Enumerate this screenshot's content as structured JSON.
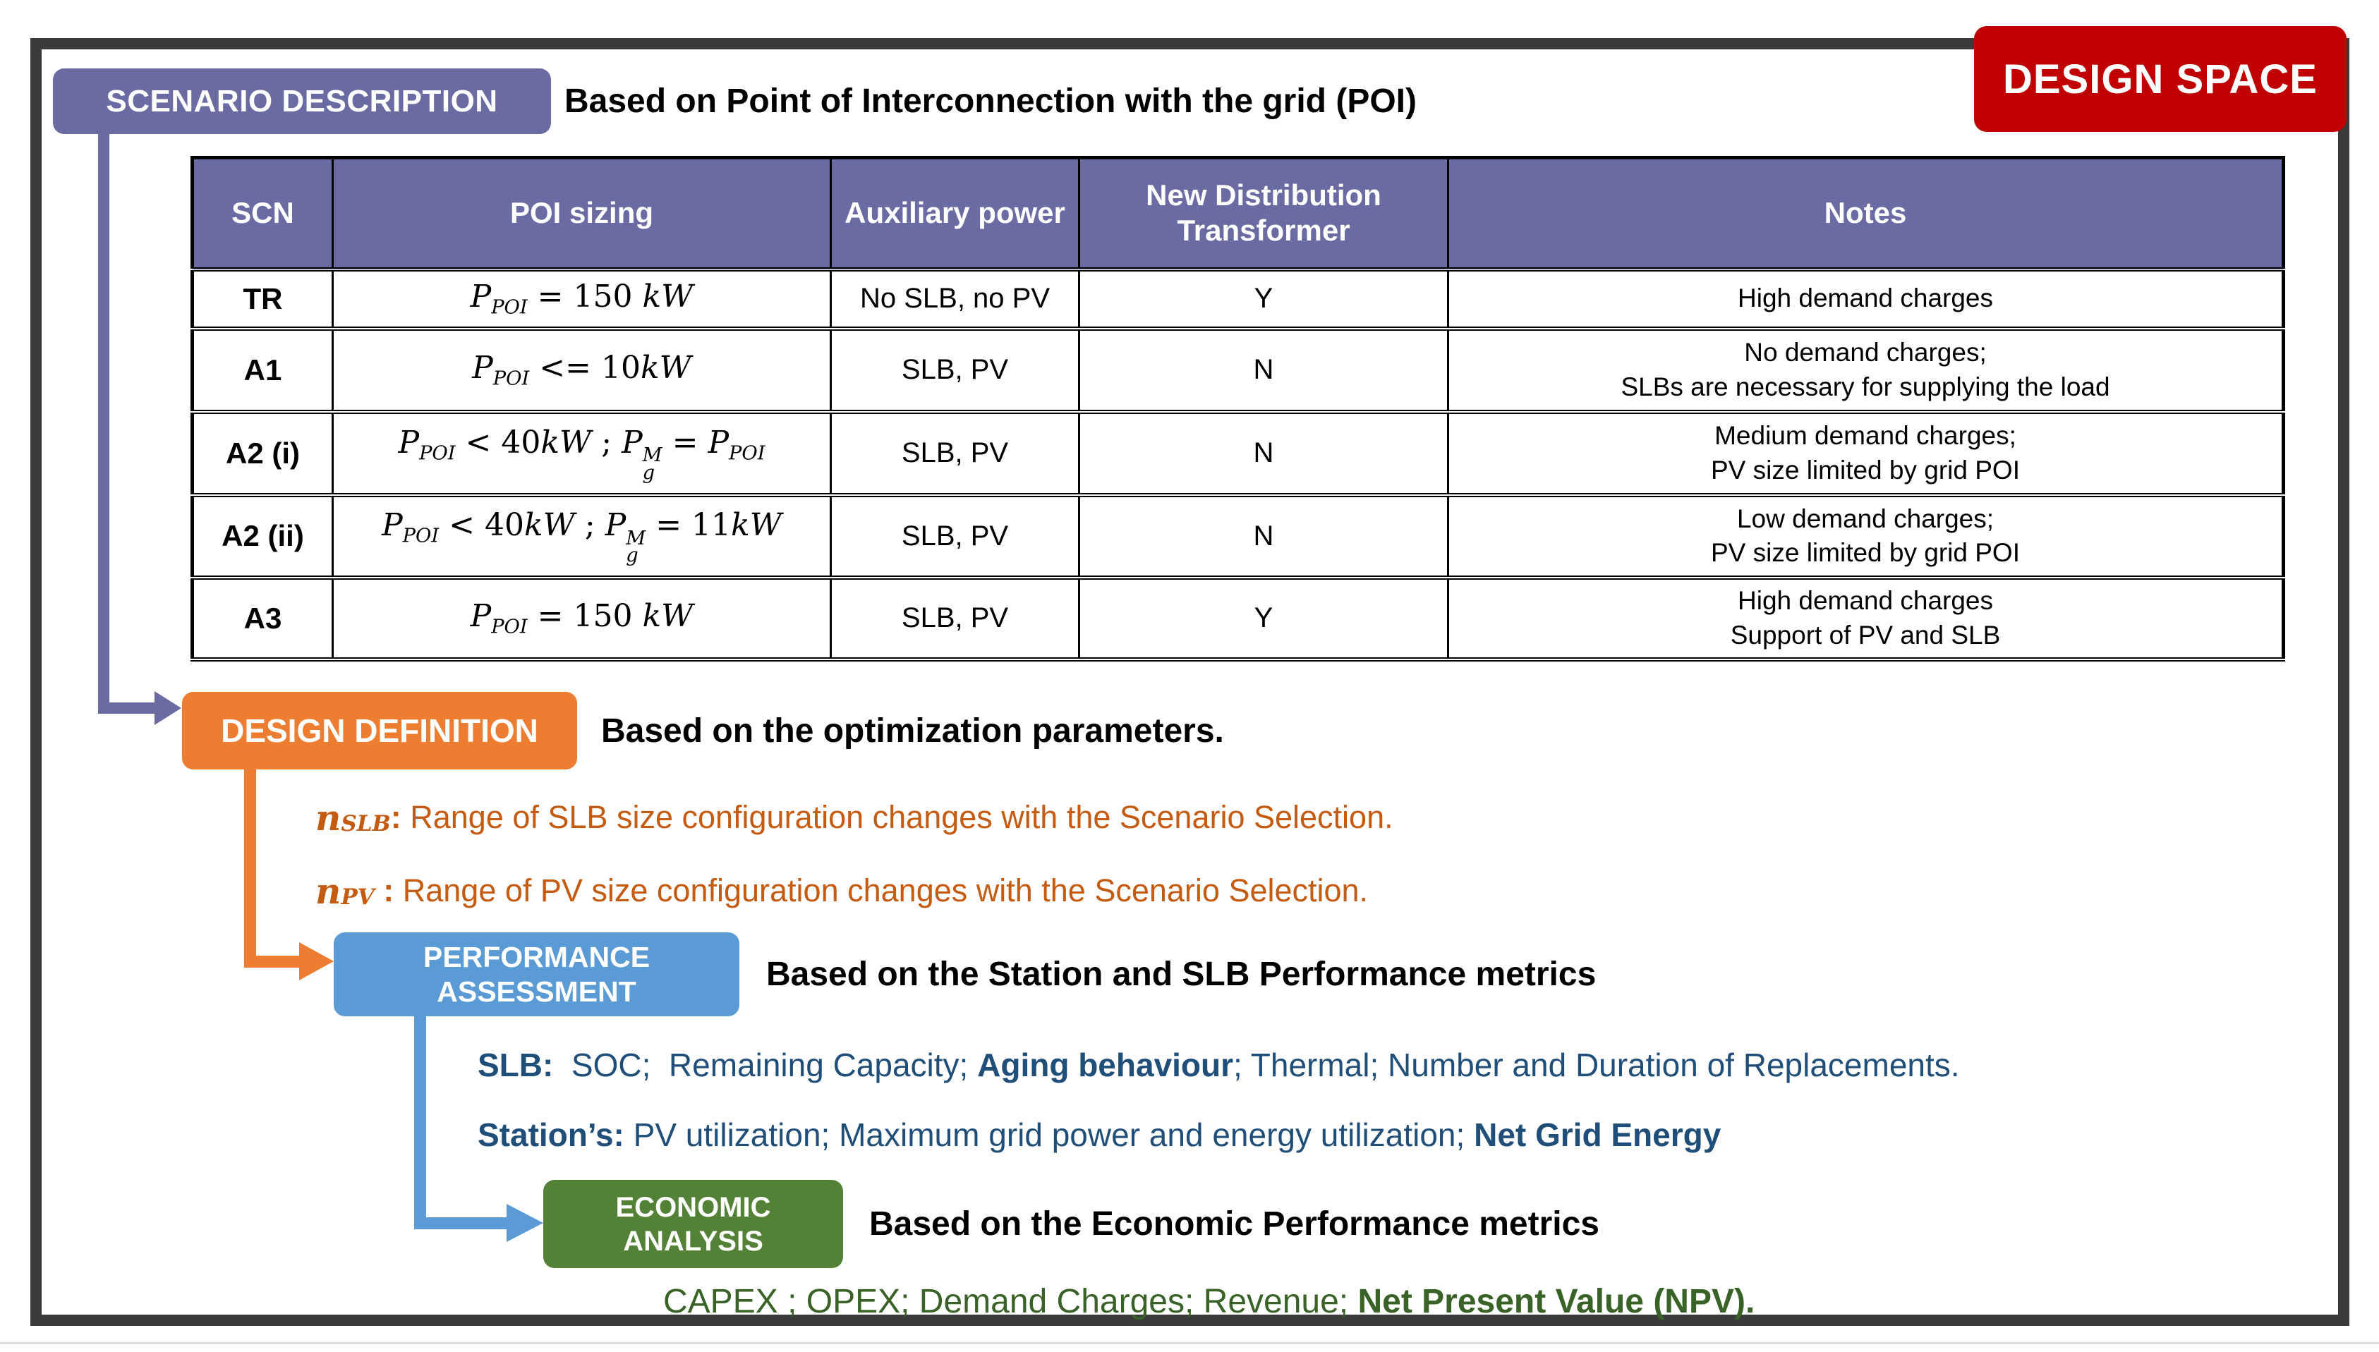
{
  "badge": {
    "label": "DESIGN SPACE"
  },
  "scenario": {
    "box_label": "SCENARIO DESCRIPTION",
    "caption": "Based on Point of Interconnection with the grid (POI)"
  },
  "table": {
    "headers": [
      "SCN",
      "POI sizing",
      "Auxiliary power",
      "New Distribution\nTransformer",
      "Notes"
    ],
    "rows": [
      {
        "scn": "TR",
        "poi": [
          {
            "v": "P"
          },
          {
            "sub": "POI"
          },
          {
            "t": " = 150 "
          },
          {
            "i": "kW"
          }
        ],
        "aux": "No SLB, no PV",
        "transformer": "Y",
        "notes": [
          "High demand charges"
        ]
      },
      {
        "scn": "A1",
        "poi": [
          {
            "v": "P"
          },
          {
            "sub": "POI"
          },
          {
            "t": " <= 10"
          },
          {
            "i": "kW"
          }
        ],
        "aux": "SLB, PV",
        "transformer": "N",
        "notes": [
          "No demand charges;",
          "SLBs are necessary for supplying the load"
        ]
      },
      {
        "scn": "A2 (i)",
        "poi": [
          {
            "v": "P"
          },
          {
            "sub": "POI"
          },
          {
            "t": " < 40"
          },
          {
            "i": "kW"
          },
          {
            "t": " ; "
          },
          {
            "v": "P"
          },
          {
            "ss": {
              "sup": "M",
              "sub": "g"
            }
          },
          {
            "t": " = "
          },
          {
            "v": "P"
          },
          {
            "sub": "POI"
          }
        ],
        "aux": "SLB, PV",
        "transformer": "N",
        "notes": [
          "Medium demand charges;",
          "PV size limited by grid POI"
        ]
      },
      {
        "scn": "A2 (ii)",
        "poi": [
          {
            "v": "P"
          },
          {
            "sub": "POI"
          },
          {
            "t": " < 40"
          },
          {
            "i": "kW"
          },
          {
            "t": " ; "
          },
          {
            "v": "P"
          },
          {
            "ss": {
              "sup": "M",
              "sub": "g"
            }
          },
          {
            "t": " = 11"
          },
          {
            "i": "kW"
          }
        ],
        "aux": "SLB, PV",
        "transformer": "N",
        "notes": [
          "Low demand charges;",
          "PV size limited by grid POI"
        ]
      },
      {
        "scn": "A3",
        "poi": [
          {
            "v": "P"
          },
          {
            "sub": "POI"
          },
          {
            "t": " = 150 "
          },
          {
            "i": "kW"
          }
        ],
        "aux": "SLB, PV",
        "transformer": "Y",
        "notes": [
          "High demand charges",
          "Support of PV and SLB"
        ]
      }
    ]
  },
  "design": {
    "box_label": "DESIGN DEFINITION",
    "caption": "Based on the optimization parameters."
  },
  "parameters": [
    {
      "variable": "n",
      "subscript": "SLB",
      "colon": ":",
      "text": " Range of SLB size configuration changes with the Scenario Selection."
    },
    {
      "variable": "n",
      "subscript": "PV",
      "colon": " :",
      "text": " Range of PV size configuration changes with the Scenario Selection."
    }
  ],
  "performance": {
    "box_label_line1": "PERFORMANCE",
    "box_label_line2": "ASSESSMENT",
    "caption": "Based on the Station and SLB Performance metrics",
    "slb_line": [
      {
        "t": "SLB:",
        "b": true
      },
      {
        "t": "  SOC;  Remaining Capacity; "
      },
      {
        "t": "Aging behaviour",
        "b": true
      },
      {
        "t": "; Thermal; Number and Duration of Replacements."
      }
    ],
    "station_line": [
      {
        "t": "Station’s:",
        "b": true
      },
      {
        "t": " PV utilization; Maximum grid power and energy utilization; "
      },
      {
        "t": "Net Grid Energy",
        "b": true
      }
    ]
  },
  "economic": {
    "box_label_line1": "ECONOMIC",
    "box_label_line2": "ANALYSIS",
    "caption": "Based on the Economic Performance metrics",
    "metrics_line": [
      {
        "t": "CAPEX ; OPEX; Demand Charges; Revenue; "
      },
      {
        "t": "Net Present Value (NPV).",
        "b": true
      }
    ]
  },
  "colors": {
    "purple": "#6b6ba3",
    "orange": "#ed7d31",
    "blue": "#5b9bd5",
    "green": "#538135",
    "red": "#c00000",
    "orange_text": "#c55a11",
    "blue_text": "#1f4e79",
    "green_text": "#386226",
    "frame": "#3a3a3a"
  }
}
